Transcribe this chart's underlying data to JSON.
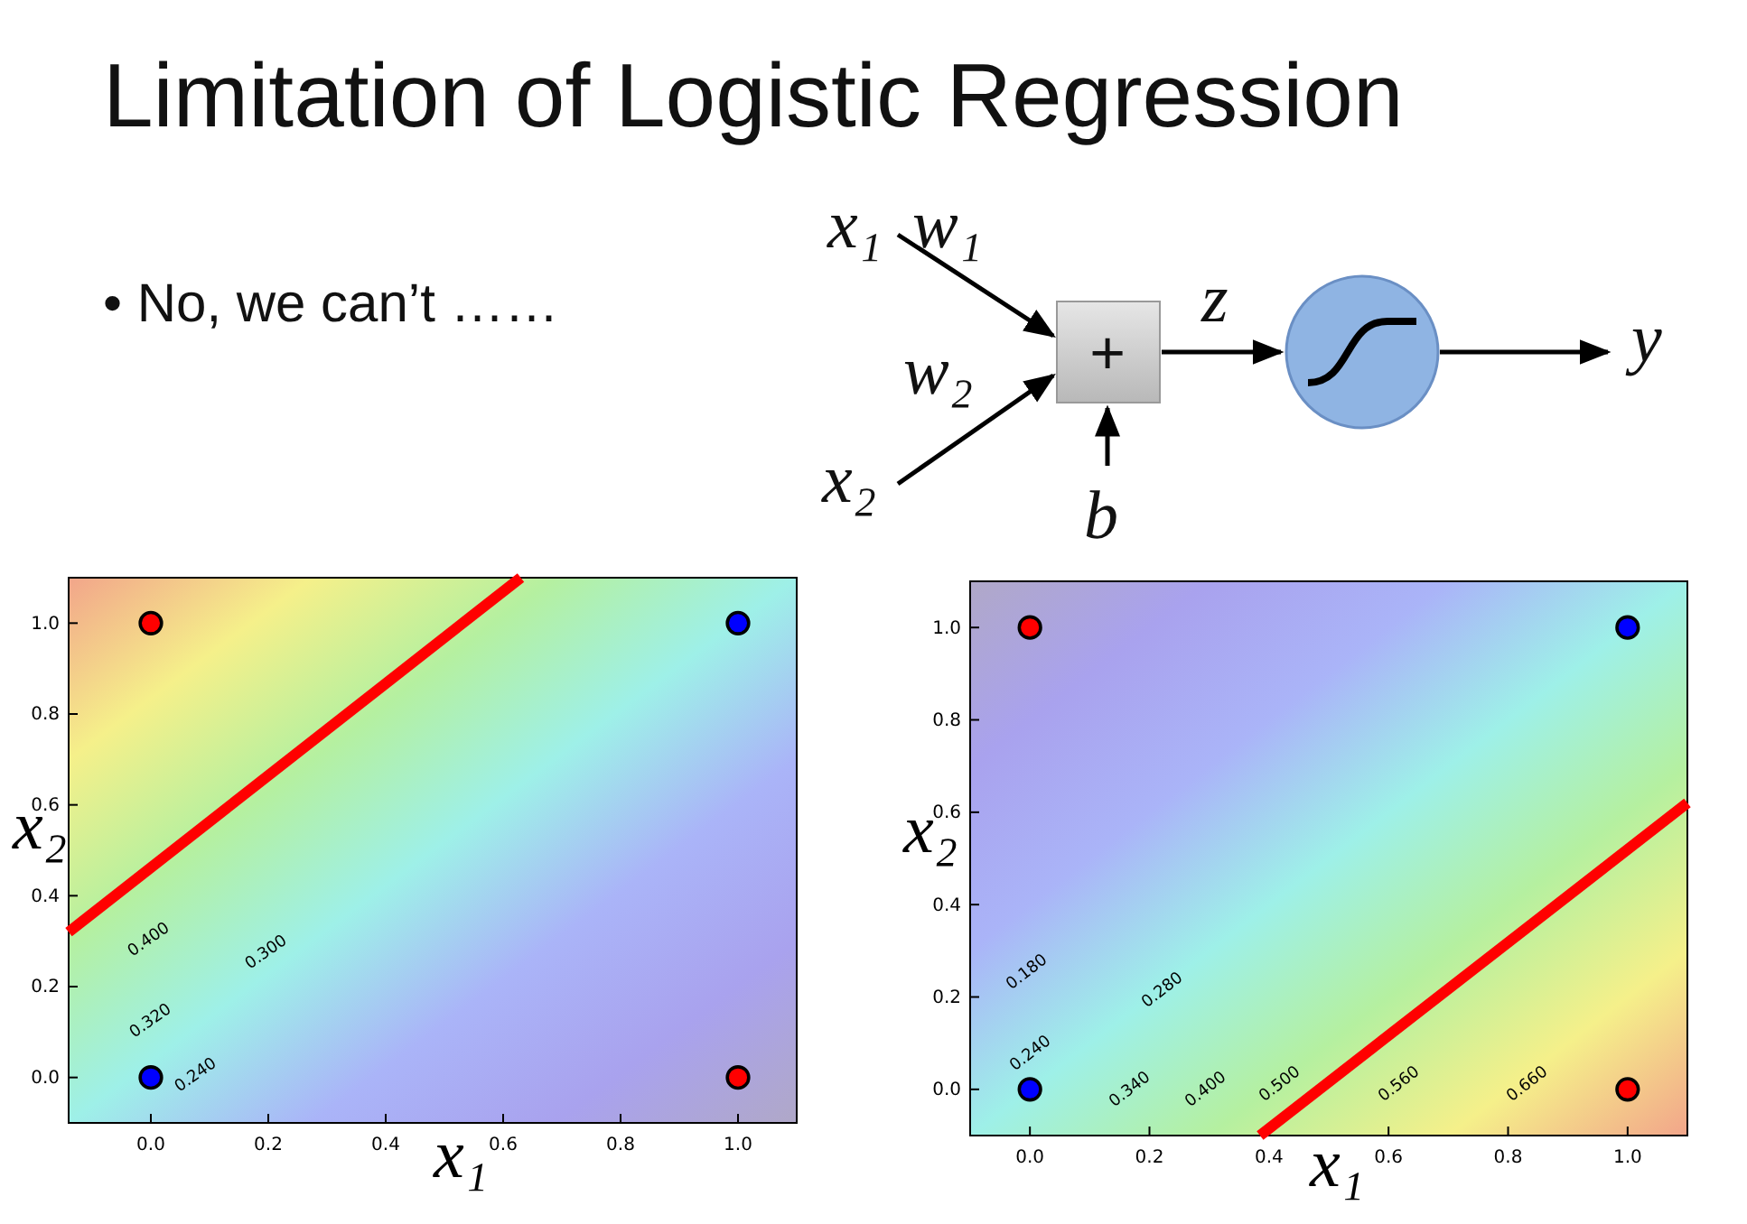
{
  "chart_data": [
    {
      "type": "other",
      "title": "Limitation of Logistic Regression",
      "annotations": [
        "• No, we can’t ……",
        "x₁",
        "w₁",
        "w₂",
        "x₂",
        "b",
        "z",
        "y",
        "+"
      ]
    },
    {
      "type": "scatter",
      "xlabel": "x₁",
      "ylabel": "x₂",
      "xlim": [
        -0.14,
        1.1
      ],
      "ylim": [
        -0.1,
        1.1
      ],
      "xticks": [
        {
          "value": 0,
          "label": "0.0"
        },
        {
          "value": 0.2,
          "label": "0.2"
        },
        {
          "value": 0.4,
          "label": "0.4"
        },
        {
          "value": 0.6,
          "label": "0.6"
        },
        {
          "value": 0.8,
          "label": "0.8"
        },
        {
          "value": 1,
          "label": "1.0"
        }
      ],
      "yticks": [
        {
          "value": 0,
          "label": "0.0"
        },
        {
          "value": 0.2,
          "label": "0.2"
        },
        {
          "value": 0.4,
          "label": "0.4"
        },
        {
          "value": 0.6,
          "label": "0.6"
        },
        {
          "value": 0.8,
          "label": "0.8"
        },
        {
          "value": 1,
          "label": "1.0"
        }
      ],
      "series": [
        {
          "type": "line",
          "x": [
            -0.14,
            0.63
          ],
          "values": [
            0.32,
            1.1
          ],
          "color": "#ff0000"
        },
        {
          "type": "scatter",
          "marker": "circle",
          "x": [
            0,
            1,
            0,
            1
          ],
          "values": [
            1,
            1,
            0,
            0
          ],
          "colors": [
            "#ff0000",
            "#0000ff",
            "#0000ff",
            "#ff0000"
          ]
        }
      ],
      "annotations": [
        "0.400",
        "0.300",
        "0.320",
        "0.240"
      ]
    },
    {
      "type": "scatter",
      "xlabel": "x₁",
      "ylabel": "x₂",
      "xlim": [
        -0.1,
        1.1
      ],
      "ylim": [
        -0.1,
        1.1
      ],
      "xticks": [
        {
          "value": 0,
          "label": "0.0"
        },
        {
          "value": 0.2,
          "label": "0.2"
        },
        {
          "value": 0.4,
          "label": "0.4"
        },
        {
          "value": 0.6,
          "label": "0.6"
        },
        {
          "value": 0.8,
          "label": "0.8"
        },
        {
          "value": 1,
          "label": "1.0"
        }
      ],
      "yticks": [
        {
          "value": 0,
          "label": "0.0"
        },
        {
          "value": 0.2,
          "label": "0.2"
        },
        {
          "value": 0.4,
          "label": "0.4"
        },
        {
          "value": 0.6,
          "label": "0.6"
        },
        {
          "value": 0.8,
          "label": "0.8"
        },
        {
          "value": 1,
          "label": "1.0"
        }
      ],
      "series": [
        {
          "type": "line",
          "x": [
            0.385,
            1.1
          ],
          "values": [
            -0.1,
            0.62
          ],
          "color": "#ff0000"
        },
        {
          "type": "scatter",
          "marker": "circle",
          "x": [
            0,
            1,
            0,
            1
          ],
          "values": [
            1,
            1,
            0,
            0
          ],
          "colors": [
            "#ff0000",
            "#0000ff",
            "#0000ff",
            "#ff0000"
          ]
        }
      ],
      "annotations": [
        "0.180",
        "0.280",
        "0.240",
        "0.340",
        "0.400",
        "0.500",
        "0.560",
        "0.660"
      ]
    }
  ]
}
